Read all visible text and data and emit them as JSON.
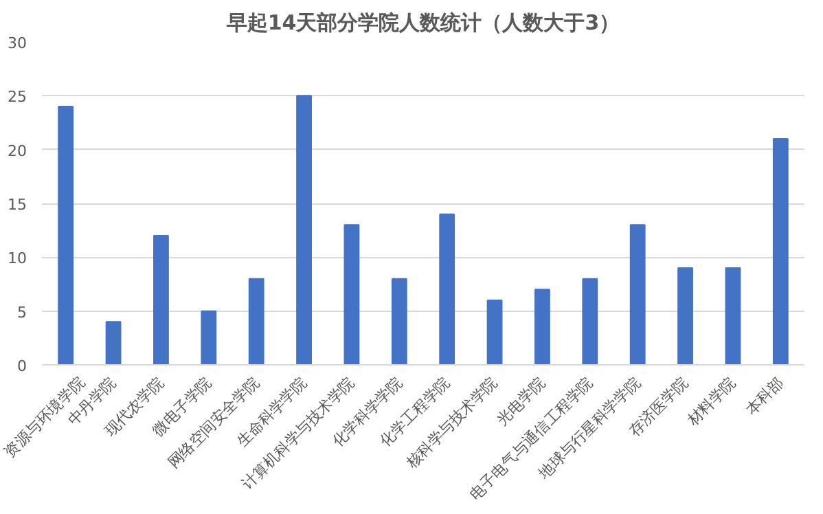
{
  "chart_data": {
    "type": "bar",
    "title": "早起14天部分学院人数统计（人数大于3）",
    "categories": [
      "资源与环境学院",
      "中丹学院",
      "现代农学院",
      "微电子学院",
      "网络空间安全学院",
      "生命科学学院",
      "计算机科学与技术学院",
      "化学科学学院",
      "化学工程学院",
      "核科学与技术学院",
      "光电学院",
      "电子电气与通信工程学院",
      "地球与行星科学学院",
      "存济医学院",
      "材料学院",
      "本科部"
    ],
    "values": [
      24,
      4,
      12,
      5,
      8,
      25,
      13,
      8,
      14,
      6,
      7,
      8,
      13,
      9,
      9,
      21
    ],
    "color": "#4472c4",
    "ylim": [
      0,
      30
    ],
    "yticks": [
      0,
      5,
      10,
      15,
      20,
      25,
      30
    ],
    "grid": "y"
  }
}
